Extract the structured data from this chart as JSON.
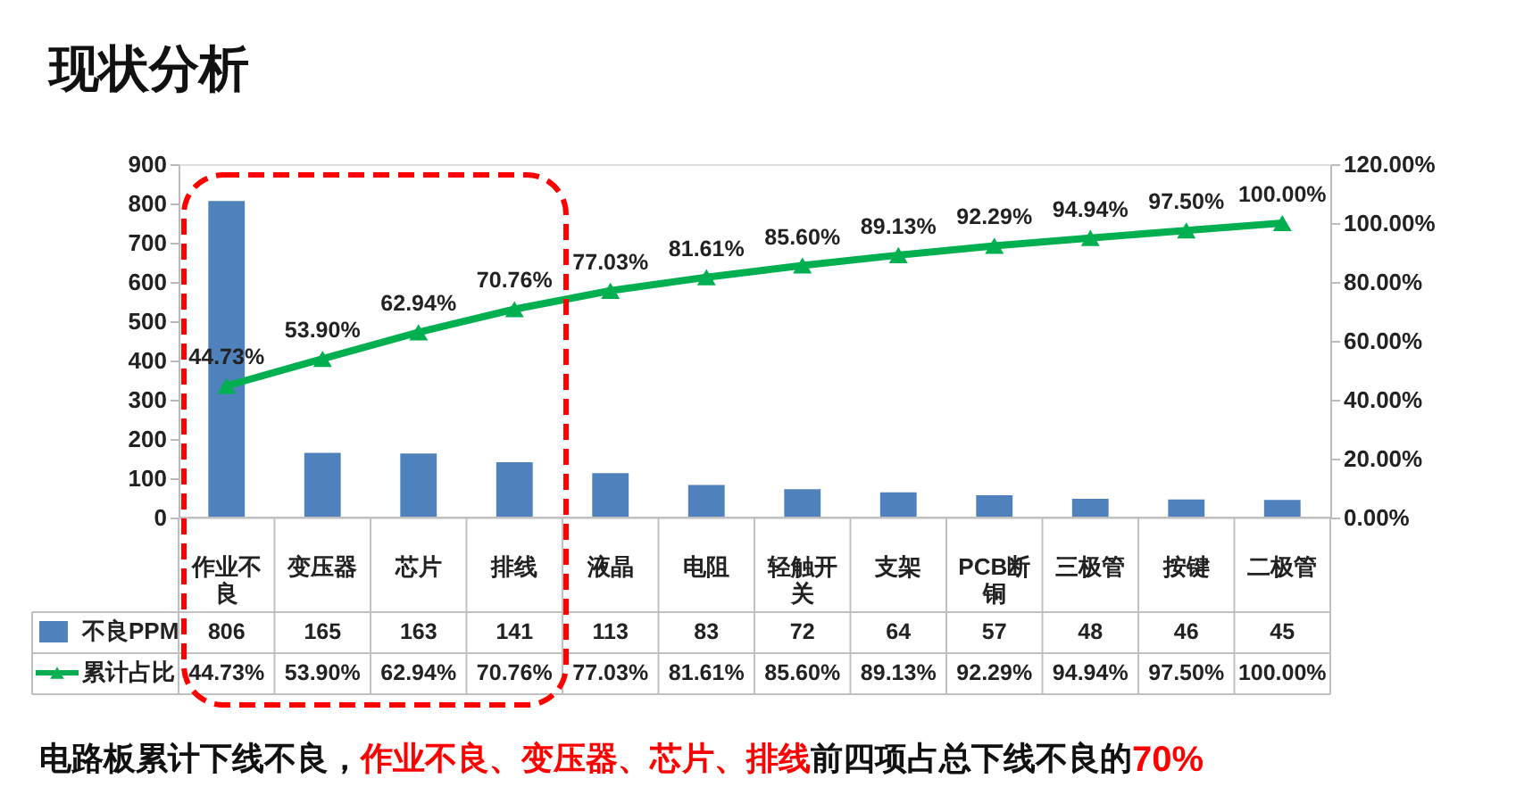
{
  "chart_data": {
    "type": "bar",
    "title": "现状分析",
    "categories": [
      "作业不良",
      "变压器",
      "芯片",
      "排线",
      "液晶",
      "电阻",
      "轻触开关",
      "支架",
      "PCB断铜",
      "三极管",
      "按键",
      "二极管"
    ],
    "series": [
      {
        "name": "不良PPM",
        "color": "#4f81bd",
        "values": [
          806,
          165,
          163,
          141,
          113,
          83,
          72,
          64,
          57,
          48,
          46,
          45
        ]
      },
      {
        "name": "累计占比",
        "type": "line",
        "axis": "y2",
        "color": "#00b050",
        "marker": "triangle",
        "values": [
          44.73,
          53.9,
          62.94,
          70.76,
          77.03,
          81.61,
          85.6,
          89.13,
          92.29,
          94.94,
          97.5,
          100.0
        ],
        "value_labels": [
          "44.73%",
          "53.90%",
          "62.94%",
          "70.76%",
          "77.03%",
          "81.61%",
          "85.60%",
          "89.13%",
          "92.29%",
          "94.94%",
          "97.50%",
          "100.00%"
        ]
      }
    ],
    "ylim": [
      0,
      900
    ],
    "yticks": [
      0,
      100,
      200,
      300,
      400,
      500,
      600,
      700,
      800,
      900
    ],
    "y2lim": [
      0,
      120
    ],
    "y2ticks": [
      {
        "value": 0,
        "label": "0.00%"
      },
      {
        "value": 20,
        "label": "20.00%"
      },
      {
        "value": 40,
        "label": "40.00%"
      },
      {
        "value": 60,
        "label": "60.00%"
      },
      {
        "value": 80,
        "label": "80.00%"
      },
      {
        "value": 100,
        "label": "100.00%"
      },
      {
        "value": 120,
        "label": "120.00%"
      }
    ],
    "data_labels": true,
    "grid": false,
    "legend": "bottom left",
    "annotations": [
      "电路板累计下线不良，",
      "作业不良、变压器、芯片、排线",
      "前四项占总下线不良的",
      "70%"
    ]
  }
}
